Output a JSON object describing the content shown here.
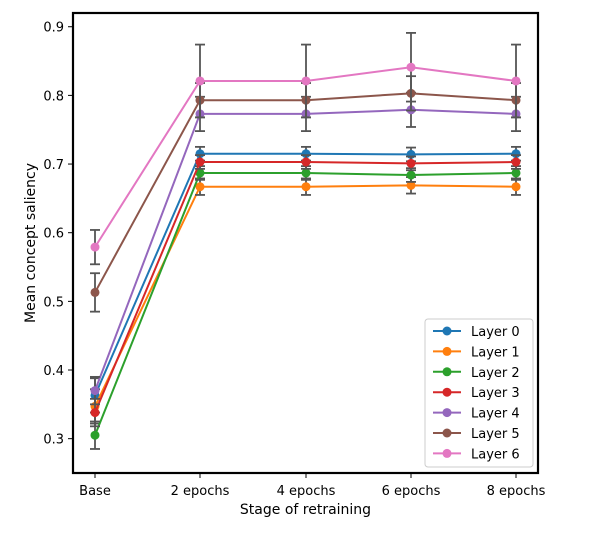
{
  "chart_data": {
    "type": "line",
    "title": "",
    "xlabel": "Stage of retraining",
    "ylabel": "Mean concept saliency",
    "categories": [
      "Base",
      "2 epochs",
      "4 epochs",
      "6 epochs",
      "8 epochs"
    ],
    "ylim": [
      0.25,
      0.92
    ],
    "yticks": [
      "0.3",
      "0.4",
      "0.5",
      "0.6",
      "0.7",
      "0.8",
      "0.9"
    ],
    "grid": false,
    "legend_position": "lower-right",
    "error_bar_color": "#555555",
    "series": [
      {
        "name": "Layer 0",
        "color": "#1f77b4",
        "values": [
          0.363,
          0.715,
          0.715,
          0.714,
          0.715
        ],
        "errors": [
          0.025,
          0.01,
          0.01,
          0.01,
          0.01
        ]
      },
      {
        "name": "Layer 1",
        "color": "#ff7f0e",
        "values": [
          0.347,
          0.667,
          0.667,
          0.669,
          0.667
        ],
        "errors": [
          0.025,
          0.012,
          0.012,
          0.012,
          0.012
        ]
      },
      {
        "name": "Layer 2",
        "color": "#2ca02c",
        "values": [
          0.305,
          0.687,
          0.687,
          0.684,
          0.687
        ],
        "errors": [
          0.02,
          0.01,
          0.01,
          0.01,
          0.01
        ]
      },
      {
        "name": "Layer 3",
        "color": "#d62728",
        "values": [
          0.338,
          0.703,
          0.703,
          0.701,
          0.703
        ],
        "errors": [
          0.02,
          0.01,
          0.01,
          0.01,
          0.01
        ]
      },
      {
        "name": "Layer 4",
        "color": "#9467bd",
        "values": [
          0.37,
          0.773,
          0.773,
          0.779,
          0.773
        ],
        "errors": [
          0.02,
          0.025,
          0.025,
          0.025,
          0.025
        ]
      },
      {
        "name": "Layer 5",
        "color": "#8c564b",
        "values": [
          0.513,
          0.793,
          0.793,
          0.803,
          0.793
        ],
        "errors": [
          0.028,
          0.025,
          0.025,
          0.025,
          0.025
        ]
      },
      {
        "name": "Layer 6",
        "color": "#e377c2",
        "values": [
          0.579,
          0.821,
          0.821,
          0.841,
          0.821
        ],
        "errors": [
          0.025,
          0.053,
          0.053,
          0.05,
          0.053
        ]
      }
    ]
  }
}
